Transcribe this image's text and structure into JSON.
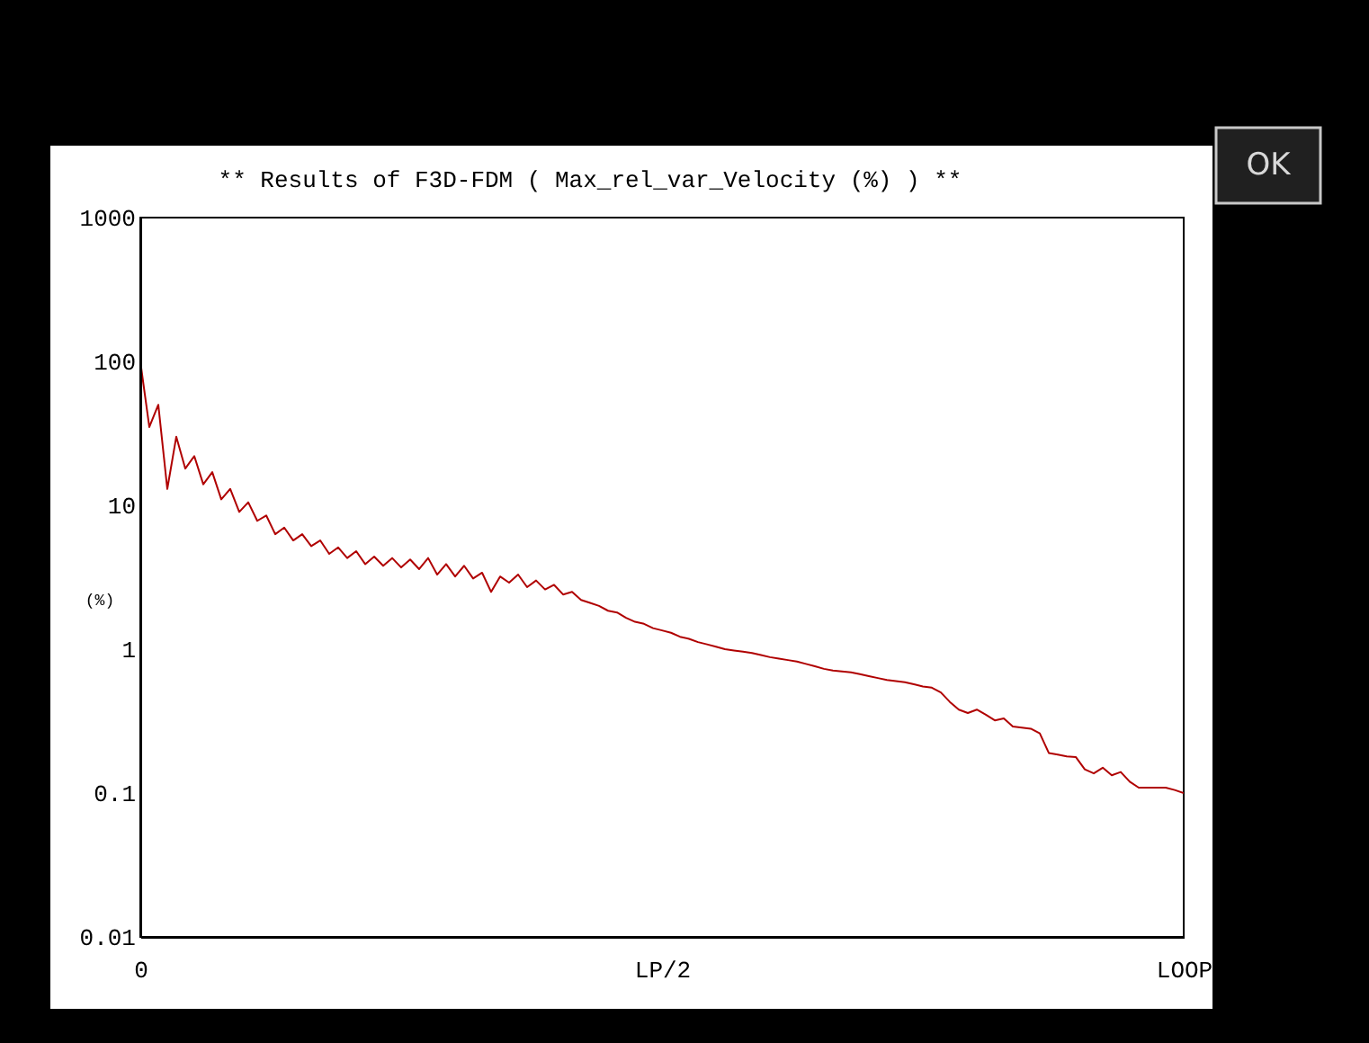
{
  "chart_data": {
    "type": "line",
    "title": "** Results of F3D-FDM ( Max_rel_var_Velocity (%) ) **",
    "ylabel": "(%)",
    "categories": [
      "0",
      null,
      null,
      null,
      null,
      null,
      null,
      null,
      null,
      null,
      null,
      null,
      null,
      null,
      null,
      null,
      null,
      null,
      null,
      null,
      null,
      null,
      null,
      null,
      null,
      null,
      null,
      null,
      null,
      null,
      null,
      null,
      null,
      null,
      null,
      null,
      null,
      null,
      null,
      null,
      null,
      null,
      null,
      null,
      null,
      null,
      null,
      null,
      null,
      null,
      null,
      null,
      null,
      null,
      null,
      null,
      null,
      null,
      "LP/2",
      null,
      null,
      null,
      null,
      null,
      null,
      null,
      null,
      null,
      null,
      null,
      null,
      null,
      null,
      null,
      null,
      null,
      null,
      null,
      null,
      null,
      null,
      null,
      null,
      null,
      null,
      null,
      null,
      null,
      null,
      null,
      null,
      null,
      null,
      null,
      null,
      null,
      null,
      null,
      null,
      null,
      null,
      null,
      null,
      null,
      null,
      null,
      null,
      null,
      null,
      null,
      null,
      null,
      null,
      null,
      null,
      null,
      "LOOP"
    ],
    "series": [
      {
        "color": "#b00000",
        "values": [
          100,
          35,
          50,
          13,
          30,
          18,
          22,
          14,
          17,
          11,
          13,
          9,
          10.5,
          7.8,
          8.5,
          6.3,
          7,
          5.7,
          6.3,
          5.2,
          5.7,
          4.6,
          5.1,
          4.3,
          4.8,
          3.9,
          4.4,
          3.8,
          4.3,
          3.7,
          4.2,
          3.6,
          4.3,
          3.3,
          3.9,
          3.2,
          3.8,
          3.1,
          3.4,
          2.5,
          3.2,
          2.9,
          3.3,
          2.7,
          3.0,
          2.6,
          2.8,
          2.4,
          2.5,
          2.2,
          2.1,
          2.0,
          1.85,
          1.8,
          1.65,
          1.55,
          1.5,
          1.4,
          1.35,
          1.3,
          1.22,
          1.18,
          1.12,
          1.08,
          1.04,
          1.0,
          0.98,
          0.96,
          0.94,
          0.91,
          0.88,
          0.86,
          0.84,
          0.82,
          0.79,
          0.76,
          0.73,
          0.71,
          0.7,
          0.69,
          0.67,
          0.65,
          0.63,
          0.61,
          0.6,
          0.59,
          0.57,
          0.55,
          0.54,
          0.5,
          0.43,
          0.38,
          0.36,
          0.38,
          0.35,
          0.32,
          0.33,
          0.29,
          0.285,
          0.28,
          0.26,
          0.19,
          0.185,
          0.18,
          0.178,
          0.146,
          0.137,
          0.15,
          0.133,
          0.14,
          0.12,
          0.109,
          0.109,
          0.109,
          0.109,
          0.105,
          0.1
        ]
      }
    ],
    "log": true,
    "ylim": [
      0.01,
      1000
    ],
    "yticks": [
      0.01,
      0.1,
      1,
      10,
      100,
      1000
    ],
    "grid": false,
    "marker": "none",
    "line_style": "solid",
    "annotations": [
      "OK"
    ]
  }
}
